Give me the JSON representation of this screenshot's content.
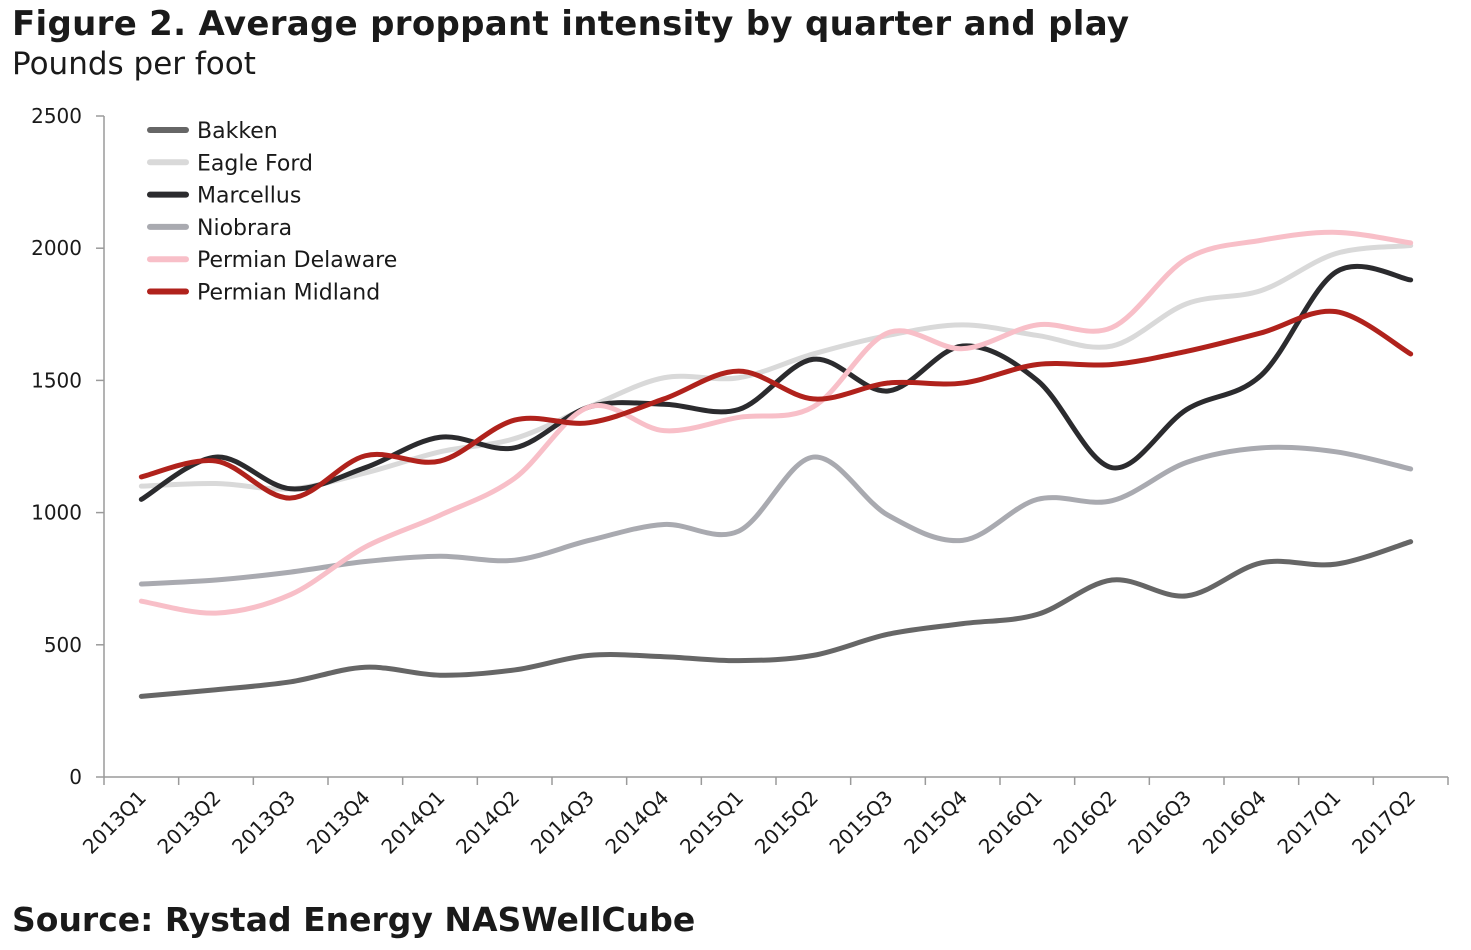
{
  "header": {
    "title": "Figure 2. Average proppant intensity by quarter and play",
    "subtitle": "Pounds per foot"
  },
  "footer": {
    "source": "Source: Rystad Energy NASWellCube"
  },
  "chart_data": {
    "type": "line",
    "title": "Figure 2. Average proppant intensity by quarter and play",
    "subtitle": "Pounds per foot",
    "xlabel": "",
    "ylabel": "",
    "ylim": [
      0,
      2500
    ],
    "yticks": [
      0,
      500,
      1000,
      1500,
      2000,
      2500
    ],
    "grid": false,
    "legend_position": "top-left",
    "categories": [
      "2013Q1",
      "2013Q2",
      "2013Q3",
      "2013Q4",
      "2014Q1",
      "2014Q2",
      "2014Q3",
      "2014Q4",
      "2015Q1",
      "2015Q2",
      "2015Q3",
      "2015Q4",
      "2016Q1",
      "2016Q2",
      "2016Q3",
      "2016Q4",
      "2017Q1",
      "2017Q2"
    ],
    "series": [
      {
        "name": "Bakken",
        "color": "#666666",
        "values": [
          305,
          330,
          360,
          415,
          385,
          405,
          460,
          455,
          440,
          460,
          540,
          580,
          615,
          745,
          685,
          810,
          805,
          890
        ]
      },
      {
        "name": "Eagle Ford",
        "color": "#d9d9d9",
        "values": [
          1100,
          1110,
          1090,
          1150,
          1230,
          1280,
          1400,
          1510,
          1510,
          1600,
          1670,
          1710,
          1670,
          1630,
          1790,
          1840,
          1980,
          2010
        ]
      },
      {
        "name": "Marcellus",
        "color": "#2b2b2e",
        "values": [
          1050,
          1210,
          1090,
          1170,
          1285,
          1245,
          1400,
          1410,
          1390,
          1580,
          1460,
          1630,
          1500,
          1170,
          1390,
          1520,
          1910,
          1880
        ]
      },
      {
        "name": "Niobrara",
        "color": "#a9aab0",
        "values": [
          730,
          745,
          775,
          815,
          835,
          820,
          895,
          955,
          930,
          1210,
          990,
          895,
          1050,
          1045,
          1190,
          1245,
          1230,
          1165
        ]
      },
      {
        "name": "Permian Delaware",
        "color": "#f8bfc8",
        "values": [
          665,
          620,
          690,
          870,
          990,
          1130,
          1400,
          1310,
          1360,
          1400,
          1680,
          1620,
          1710,
          1700,
          1960,
          2030,
          2060,
          2020
        ]
      },
      {
        "name": "Permian Midland",
        "color": "#b0221c",
        "values": [
          1135,
          1195,
          1055,
          1215,
          1195,
          1350,
          1340,
          1430,
          1535,
          1430,
          1490,
          1490,
          1560,
          1560,
          1610,
          1680,
          1760,
          1600
        ]
      }
    ]
  }
}
